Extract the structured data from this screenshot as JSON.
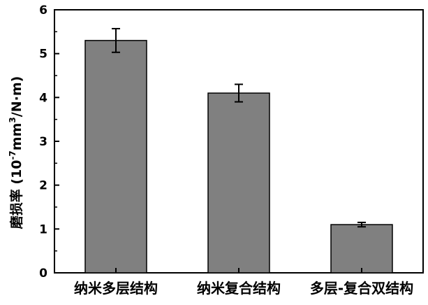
{
  "chart_data": {
    "type": "bar",
    "categories": [
      "纳米多层结构",
      "纳米复合结构",
      "多层-复合双结构"
    ],
    "values": [
      5.3,
      4.1,
      1.1
    ],
    "errors": [
      0.27,
      0.2,
      0.05
    ],
    "ylabel_main": "磨损率",
    "ylabel_unit_open": " (10",
    "ylabel_unit_exp1": "-7",
    "ylabel_unit_mid": "mm",
    "ylabel_unit_exp2": "3",
    "ylabel_unit_close": "/N·m)",
    "ylim": [
      0,
      6
    ],
    "yticks": [
      0,
      1,
      2,
      3,
      4,
      5,
      6
    ],
    "bar_color": "#808080",
    "grid": false
  }
}
